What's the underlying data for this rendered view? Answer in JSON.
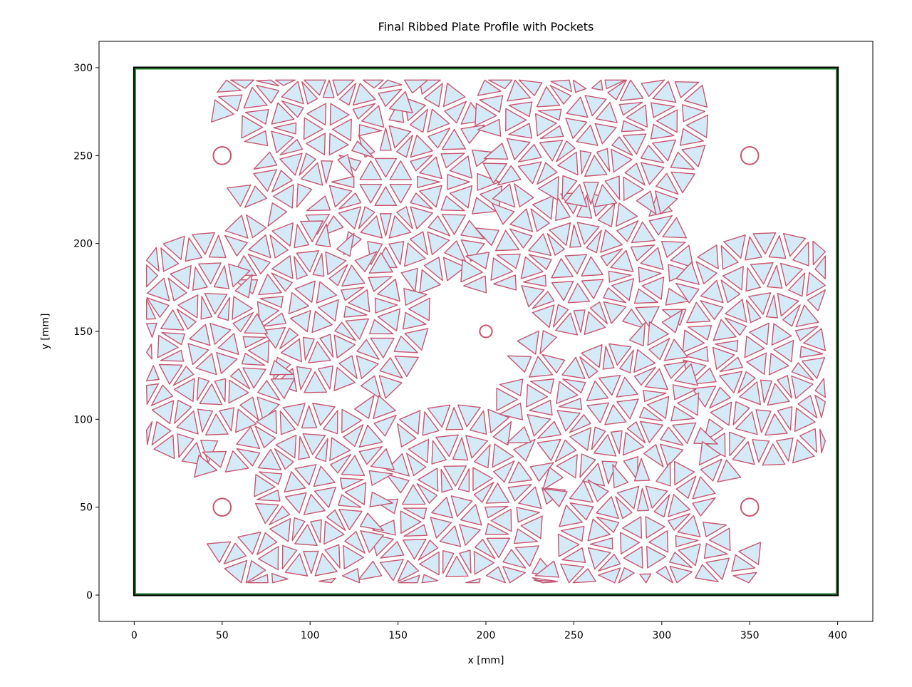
{
  "chart_data": {
    "type": "pocket-layout",
    "title": "Final Ribbed Plate Profile with Pockets",
    "xlabel": "x [mm]",
    "ylabel": "y [mm]",
    "xlim": [
      -20,
      420
    ],
    "ylim": [
      -15,
      315
    ],
    "xticks": [
      0,
      50,
      100,
      150,
      200,
      250,
      300,
      350,
      400
    ],
    "yticks": [
      0,
      50,
      100,
      150,
      200,
      250,
      300
    ],
    "plate": {
      "width": 400,
      "height": 300
    },
    "holes": [
      {
        "x": 50,
        "y": 250,
        "r": 5
      },
      {
        "x": 350,
        "y": 250,
        "r": 5
      },
      {
        "x": 50,
        "y": 50,
        "r": 5
      },
      {
        "x": 350,
        "y": 50,
        "r": 5
      },
      {
        "x": 200,
        "y": 150,
        "r": 3.5
      }
    ],
    "rosette_hubs": [
      {
        "x": 143,
        "y": 235
      },
      {
        "x": 102,
        "y": 164
      },
      {
        "x": 45,
        "y": 140
      },
      {
        "x": 252,
        "y": 180
      },
      {
        "x": 361,
        "y": 140
      },
      {
        "x": 183,
        "y": 42
      },
      {
        "x": 272,
        "y": 111
      },
      {
        "x": 110,
        "y": 265
      },
      {
        "x": 260,
        "y": 270
      },
      {
        "x": 100,
        "y": 60
      },
      {
        "x": 290,
        "y": 30
      }
    ],
    "grid": false,
    "colors": {
      "pocket_fill": "#d4eaf7",
      "pocket_edge": "#c8566e",
      "outline": "#000000",
      "inner_outline": "#1f7a2e",
      "hole_edge": "#c8566e"
    }
  }
}
